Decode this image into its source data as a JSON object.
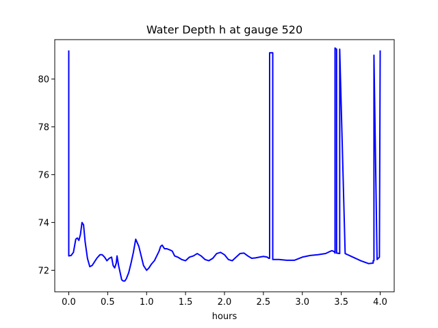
{
  "chart_data": {
    "type": "line",
    "title": "Water Depth h at gauge 520",
    "xlabel": "hours",
    "ylabel": "",
    "xlim": [
      -0.18,
      4.18
    ],
    "ylim": [
      71.1,
      81.65
    ],
    "xticks": [
      0.0,
      0.5,
      1.0,
      1.5,
      2.0,
      2.5,
      3.0,
      3.5,
      4.0
    ],
    "xtick_labels": [
      "0.0",
      "0.5",
      "1.0",
      "1.5",
      "2.0",
      "2.5",
      "3.0",
      "3.5",
      "4.0"
    ],
    "yticks": [
      72,
      74,
      76,
      78,
      80
    ],
    "ytick_labels": [
      "72",
      "74",
      "76",
      "78",
      "80"
    ],
    "grid": false,
    "line_color": "#0000ff",
    "series": [
      {
        "x": [
          0.0,
          0.0,
          0.0,
          0.03,
          0.06,
          0.09,
          0.11,
          0.13,
          0.15,
          0.17,
          0.19,
          0.21,
          0.24,
          0.27,
          0.3,
          0.33,
          0.36,
          0.4,
          0.43,
          0.46,
          0.49,
          0.52,
          0.55,
          0.57,
          0.59,
          0.61,
          0.62,
          0.64,
          0.66,
          0.68,
          0.7,
          0.72,
          0.74,
          0.77,
          0.8,
          0.83,
          0.86,
          0.9,
          0.93,
          0.96,
          1.0,
          1.03,
          1.06,
          1.1,
          1.13,
          1.16,
          1.18,
          1.2,
          1.23,
          1.26,
          1.3,
          1.33,
          1.36,
          1.4,
          1.45,
          1.5,
          1.55,
          1.6,
          1.65,
          1.7,
          1.75,
          1.8,
          1.85,
          1.9,
          1.95,
          2.0,
          2.05,
          2.1,
          2.15,
          2.2,
          2.25,
          2.3,
          2.35,
          2.4,
          2.45,
          2.5,
          2.55,
          2.57,
          2.58,
          2.58,
          2.62,
          2.62,
          2.7,
          2.8,
          2.9,
          3.0,
          3.1,
          3.2,
          3.3,
          3.35,
          3.38,
          3.41,
          3.42,
          3.42,
          3.44,
          3.44,
          3.48,
          3.48,
          3.55,
          3.65,
          3.75,
          3.85,
          3.91,
          3.91,
          3.92,
          3.92,
          3.96,
          3.99,
          3.99,
          4.0,
          4.0
        ],
        "y": [
          81.2,
          81.2,
          72.6,
          72.62,
          72.75,
          73.3,
          73.35,
          73.25,
          73.5,
          74.0,
          73.9,
          73.2,
          72.5,
          72.15,
          72.2,
          72.35,
          72.5,
          72.65,
          72.65,
          72.55,
          72.4,
          72.5,
          72.55,
          72.2,
          72.1,
          72.3,
          72.6,
          72.2,
          71.9,
          71.6,
          71.55,
          71.55,
          71.65,
          71.9,
          72.3,
          72.75,
          73.3,
          73.0,
          72.6,
          72.2,
          72.0,
          72.1,
          72.25,
          72.4,
          72.6,
          72.8,
          73.0,
          73.05,
          72.9,
          72.9,
          72.85,
          72.8,
          72.6,
          72.55,
          72.45,
          72.4,
          72.55,
          72.6,
          72.7,
          72.6,
          72.45,
          72.4,
          72.5,
          72.7,
          72.75,
          72.65,
          72.45,
          72.4,
          72.55,
          72.7,
          72.72,
          72.6,
          72.5,
          72.52,
          72.55,
          72.58,
          72.55,
          72.5,
          72.5,
          81.1,
          81.1,
          72.45,
          72.45,
          72.42,
          72.42,
          72.55,
          72.62,
          72.65,
          72.7,
          72.78,
          72.82,
          72.78,
          72.72,
          81.3,
          81.25,
          72.72,
          72.7,
          81.25,
          72.7,
          72.55,
          72.4,
          72.28,
          72.3,
          72.4,
          72.4,
          81.0,
          72.45,
          72.55,
          72.55,
          81.2,
          81.2
        ]
      }
    ]
  }
}
